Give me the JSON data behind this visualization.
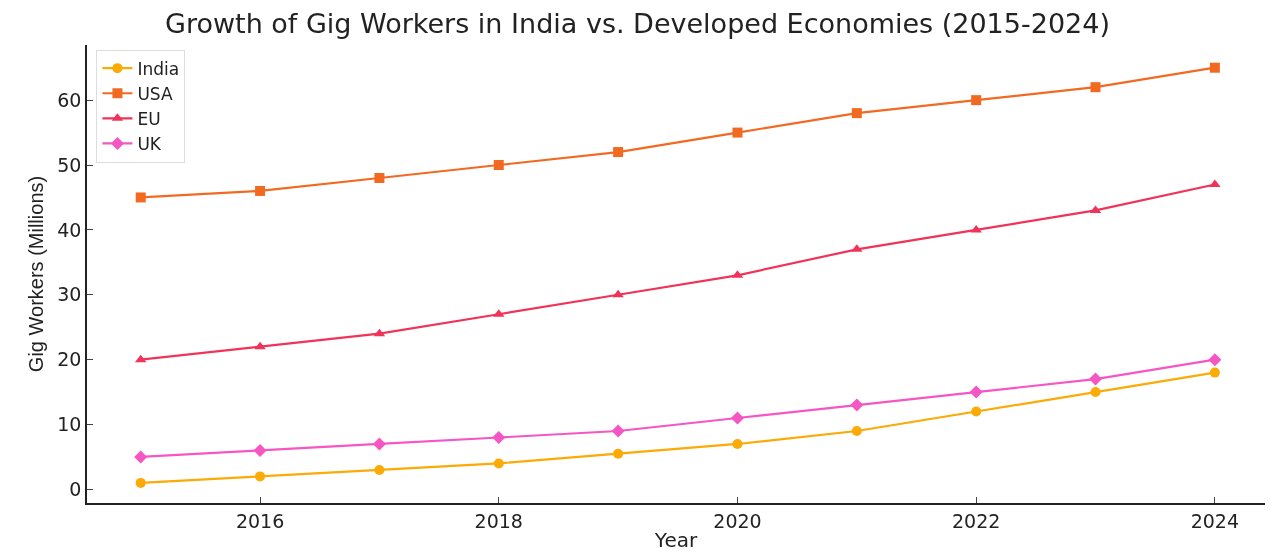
{
  "chart_data": {
    "type": "line",
    "title": "Growth of Gig Workers in India vs. Developed Economies (2015-2024)",
    "xlabel": "Year",
    "ylabel": "Gig Workers (Millions)",
    "x": [
      2015,
      2016,
      2017,
      2018,
      2019,
      2020,
      2021,
      2022,
      2023,
      2024
    ],
    "series": [
      {
        "name": "India",
        "color": "#fbaa06",
        "marker": "circle",
        "values": [
          1,
          2,
          3,
          4,
          5.5,
          7,
          9,
          12,
          15,
          18
        ]
      },
      {
        "name": "USA",
        "color": "#f26a22",
        "marker": "square",
        "values": [
          45,
          46,
          48,
          50,
          52,
          55,
          58,
          60,
          62,
          65
        ]
      },
      {
        "name": "EU",
        "color": "#f03358",
        "marker": "triangle",
        "values": [
          20,
          22,
          24,
          27,
          30,
          33,
          37,
          40,
          43,
          47
        ]
      },
      {
        "name": "UK",
        "color": "#f556c4",
        "marker": "diamond",
        "values": [
          5,
          6,
          7,
          8,
          9,
          11,
          13,
          15,
          17,
          20
        ]
      }
    ],
    "xlim": [
      2014.55,
      2024.42
    ],
    "xticks": [
      2016,
      2018,
      2020,
      2022,
      2024
    ],
    "ylim": [
      -2.1,
      68.5
    ],
    "yticks": [
      0,
      10,
      20,
      30,
      40,
      50,
      60
    ],
    "legend": "top left",
    "line_style": "solid"
  }
}
